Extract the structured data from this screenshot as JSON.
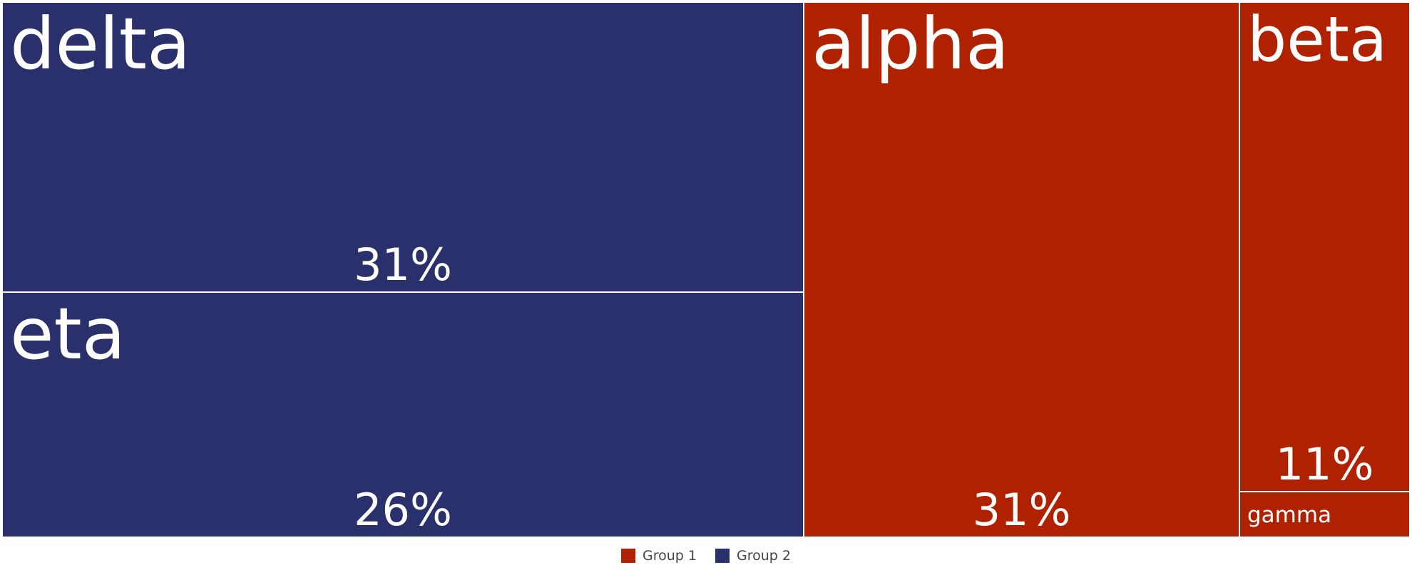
{
  "chart_data": {
    "type": "treemap",
    "groups": [
      {
        "name": "Group 2",
        "color": "#29306c",
        "items": [
          {
            "label": "delta",
            "percent_label": "31%",
            "value": 31
          },
          {
            "label": "eta",
            "percent_label": "26%",
            "value": 26
          }
        ]
      },
      {
        "name": "Group 1",
        "color": "#b02100",
        "items": [
          {
            "label": "alpha",
            "percent_label": "31%",
            "value": 31
          },
          {
            "label": "beta",
            "percent_label": "11%",
            "value": 11
          },
          {
            "label": "gamma",
            "percent_label": "",
            "value": 1
          }
        ]
      }
    ],
    "legend": {
      "placement": "bottom-center",
      "entries": [
        {
          "label": "Group 1",
          "color": "#b02100"
        },
        {
          "label": "Group 2",
          "color": "#29306c"
        }
      ]
    }
  }
}
